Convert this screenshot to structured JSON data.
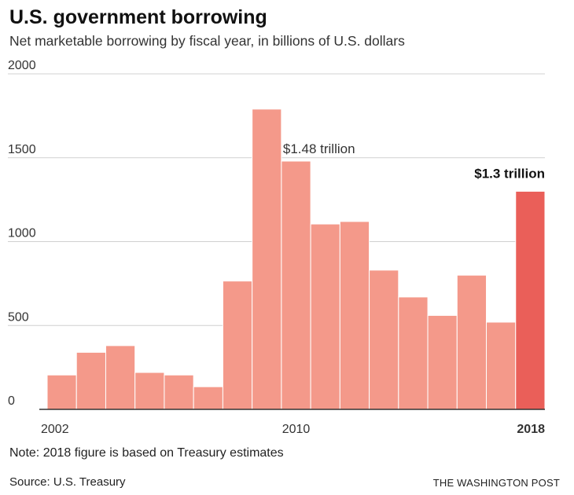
{
  "header": {
    "title": "U.S. government borrowing",
    "subtitle": "Net marketable borrowing by fiscal year, in billions of U.S. dollars"
  },
  "chart_data": {
    "type": "bar",
    "categories": [
      "2002",
      "2003",
      "2004",
      "2005",
      "2006",
      "2007",
      "2008",
      "2009",
      "2010",
      "2011",
      "2012",
      "2013",
      "2014",
      "2015",
      "2016",
      "2017",
      "2018"
    ],
    "values": [
      205,
      340,
      380,
      220,
      205,
      135,
      765,
      1790,
      1480,
      1105,
      1120,
      830,
      670,
      560,
      800,
      520,
      1300
    ],
    "ylim": [
      0,
      2000
    ],
    "y_ticks": [
      0,
      500,
      1000,
      1500,
      2000
    ],
    "x_tick_labels": [
      "2002",
      "2010",
      "2018"
    ],
    "grid": true,
    "colors": {
      "bar": "#f4998a",
      "highlight": "#ea5f59",
      "axis": "#333333",
      "grid": "#d0d0d0"
    },
    "annotations": [
      {
        "category": "2010",
        "text": "$1.48 trillion",
        "bold": false
      },
      {
        "category": "2018",
        "text": "$1.3 trillion",
        "bold": true
      }
    ],
    "highlight_category": "2018"
  },
  "footer": {
    "note": "Note: 2018 figure is based on Treasury estimates",
    "source": "Source: U.S. Treasury",
    "credit": "THE WASHINGTON POST"
  }
}
